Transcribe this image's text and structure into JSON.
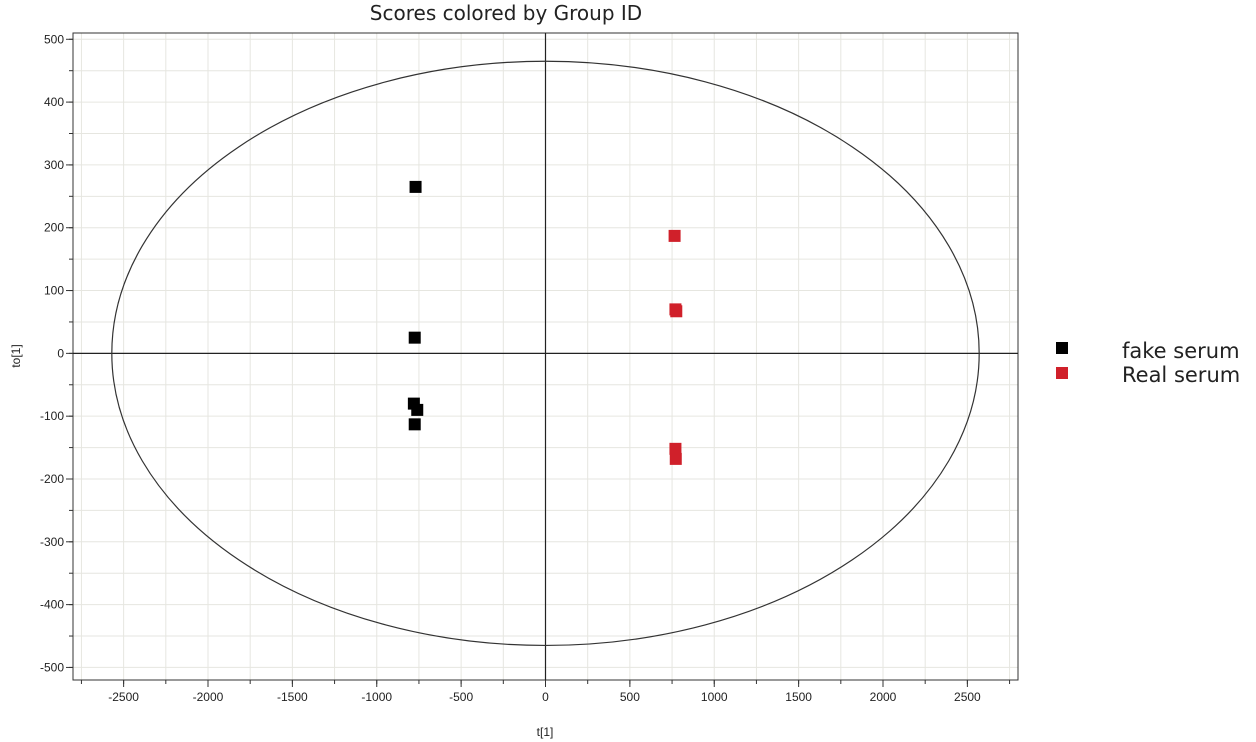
{
  "chart_data": {
    "type": "scatter",
    "title": "Scores colored by Group ID",
    "xlabel": "t[1]",
    "ylabel": "to[1]",
    "xlim": [
      -2800,
      2800
    ],
    "ylim": [
      -520,
      510
    ],
    "xticks": [
      -2500,
      -2000,
      -1500,
      -1000,
      -500,
      0,
      500,
      1000,
      1500,
      2000,
      2500
    ],
    "yticks": [
      -500,
      -400,
      -300,
      -200,
      -100,
      0,
      100,
      200,
      300,
      400,
      500
    ],
    "grid": true,
    "legend_position": "right",
    "ellipse": {
      "center": [
        0,
        0
      ],
      "rx": 2570,
      "ry": 465
    },
    "series": [
      {
        "name": "fake serum",
        "color": "#000000",
        "points": [
          [
            -770,
            265
          ],
          [
            -775,
            25
          ],
          [
            -780,
            -80
          ],
          [
            -760,
            -90
          ],
          [
            -775,
            -113
          ]
        ]
      },
      {
        "name": "Real serum",
        "color": "#d0202a",
        "points": [
          [
            765,
            187
          ],
          [
            770,
            70
          ],
          [
            775,
            67
          ],
          [
            770,
            -152
          ],
          [
            772,
            -168
          ]
        ]
      }
    ]
  }
}
